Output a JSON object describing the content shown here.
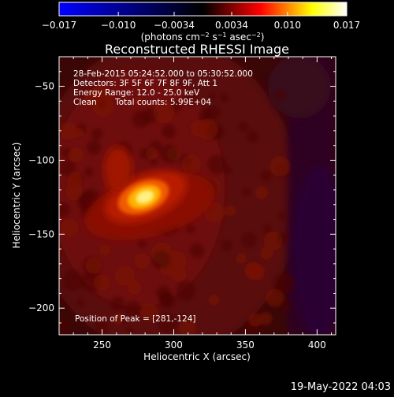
{
  "chart_data": {
    "type": "heatmap",
    "title": "Reconstructed RHESSI Image",
    "xlabel": "Heliocentric X (arcsec)",
    "ylabel": "Heliocentric Y (arcsec)",
    "xlim": [
      220,
      413
    ],
    "ylim": [
      -218,
      -30
    ],
    "x_ticks": [
      "250",
      "300",
      "350",
      "400"
    ],
    "x_tick_values": [
      250,
      300,
      350,
      400
    ],
    "y_ticks": [
      "−50",
      "−100",
      "−150",
      "−200"
    ],
    "y_tick_values": [
      -50,
      -100,
      -150,
      -200
    ],
    "colorbar": {
      "ticks": [
        "−0.017",
        "−0.010",
        "−0.0034",
        "0.0034",
        "0.010",
        "0.017"
      ],
      "tick_values": [
        -0.017,
        -0.01,
        -0.0034,
        0.0034,
        0.01,
        0.017
      ],
      "range": [
        -0.017,
        0.017
      ],
      "unit_label_parts": [
        "(photons cm",
        "−2",
        " s",
        "−1",
        " asec",
        "−2",
        ")"
      ],
      "colors": [
        "#0000ff",
        "#000000",
        "#ff0000",
        "#ffff00",
        "#ffffff"
      ]
    },
    "annotations": {
      "time_range": "28-Feb-2015 05:24:52.000 to 05:30:52.000",
      "detectors": "Detectors: 3F 5F 6F 7F 8F 9F, Att 1",
      "energy_range": "Energy Range: 12.0 - 25.0 keV",
      "method": "Clean",
      "total_counts": "Total counts: 5.99E+04",
      "peak_position": "Position of Peak = [281,-124]"
    },
    "peak": {
      "x": 281,
      "y": -124
    }
  },
  "footer": {
    "timestamp": "19-May-2022 04:03"
  }
}
